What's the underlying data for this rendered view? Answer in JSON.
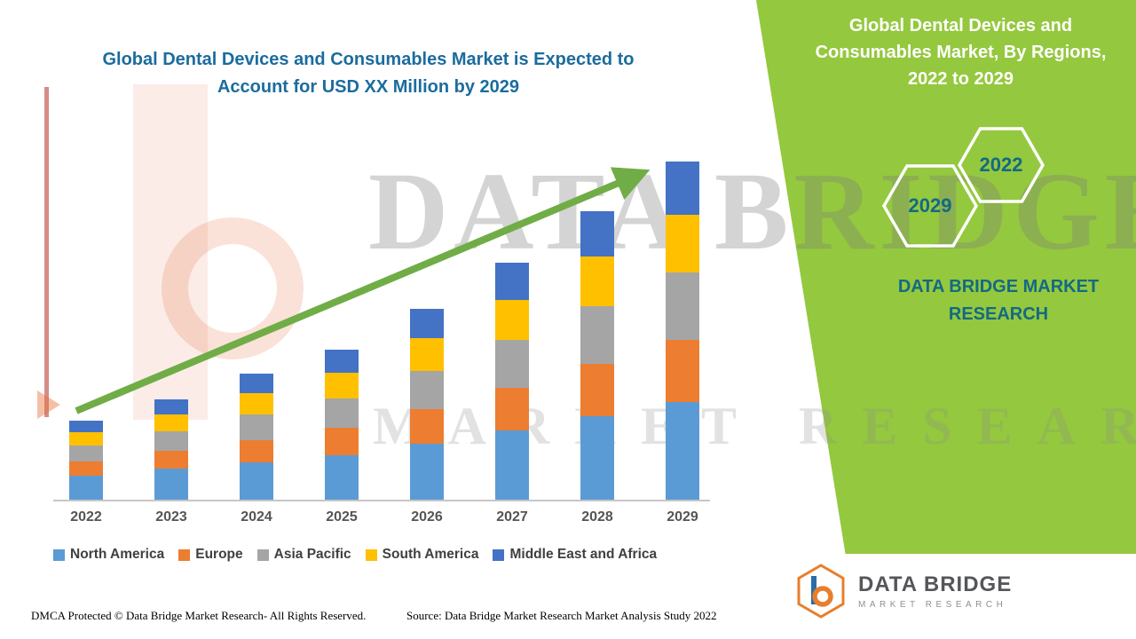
{
  "colors": {
    "accent_green": "#94C83E",
    "arrow_green": "#70AD47",
    "left_title": "#1B6C9E",
    "panel_text_teal": "#136A83"
  },
  "chart_data": {
    "type": "bar",
    "stacked": true,
    "title": "Global Dental Devices and Consumables Market is Expected to Account for USD XX Million by 2029",
    "categories": [
      "2022",
      "2023",
      "2024",
      "2025",
      "2026",
      "2027",
      "2028",
      "2029"
    ],
    "series": [
      {
        "name": "North America",
        "color": "#5B9BD5",
        "values": [
          26,
          33,
          40,
          48,
          60,
          74,
          90,
          105
        ]
      },
      {
        "name": "Europe",
        "color": "#ED7D31",
        "values": [
          15,
          19,
          24,
          29,
          37,
          46,
          56,
          66
        ]
      },
      {
        "name": "Asia Pacific",
        "color": "#A5A5A5",
        "values": [
          17,
          21,
          27,
          32,
          41,
          51,
          62,
          73
        ]
      },
      {
        "name": "South America",
        "color": "#FFC000",
        "values": [
          14,
          18,
          23,
          27,
          35,
          43,
          53,
          62
        ]
      },
      {
        "name": "Middle East and Africa",
        "color": "#4472C4",
        "values": [
          13,
          17,
          21,
          25,
          32,
          40,
          49,
          57
        ]
      }
    ],
    "xlabel": "",
    "ylabel": "",
    "ylim": [
      0,
      400
    ],
    "y_axis_visible": false,
    "grid": false,
    "legend_position": "bottom",
    "trend_arrow": true,
    "note": "Actual values shown as XX in image; series values are visual estimates in relative units"
  },
  "right_panel": {
    "title": "Global Dental Devices and Consumables Market, By Regions, 2022 to 2029",
    "hexagon_back_year": "2029",
    "hexagon_front_year": "2022",
    "brand_text": "DATA BRIDGE MARKET RESEARCH"
  },
  "watermark": {
    "line1": "DATA BRIDGE",
    "line2": "MARKET RESEARCH"
  },
  "footer": {
    "dmca": "DMCA Protected © Data Bridge Market Research- All Rights Reserved.",
    "source": "Source: Data Bridge Market Research Market Analysis Study 2022"
  },
  "logo": {
    "name": "DATA BRIDGE",
    "subtitle": "MARKET RESEARCH"
  }
}
